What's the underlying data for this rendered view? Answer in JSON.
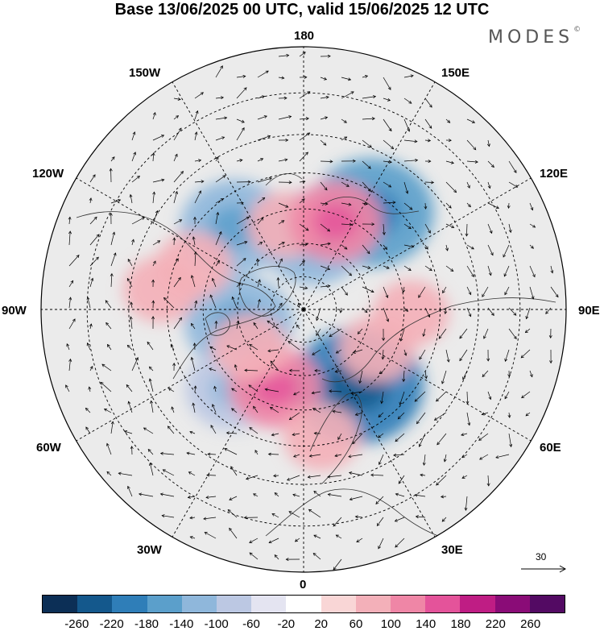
{
  "title": "Base 13/06/2025 00 UTC, valid 15/06/2025 12 UTC",
  "brand": "MODES",
  "brand_mark": "©",
  "longitude_labels": {
    "lon_180": "180",
    "lon_150e": "150E",
    "lon_120e": "120E",
    "lon_90e": "90E",
    "lon_60e": "60E",
    "lon_30e": "30E",
    "lon_0": "0",
    "lon_30w": "30W",
    "lon_60w": "60W",
    "lon_90w": "90W",
    "lon_120w": "120W",
    "lon_150w": "150W"
  },
  "reference_vector": {
    "value": "30"
  },
  "colorbar": {
    "ticks": [
      "-260",
      "-220",
      "-180",
      "-140",
      "-100",
      "-60",
      "-20",
      "20",
      "60",
      "100",
      "140",
      "180",
      "220",
      "260"
    ],
    "colors": [
      "#0c2f56",
      "#14588c",
      "#2f7eb8",
      "#5b9fcb",
      "#8fb7db",
      "#bcc8e3",
      "#e4e4f1",
      "#ffffff",
      "#f9d6d6",
      "#f3b0b9",
      "#ef86a6",
      "#e4539a",
      "#bf1d84",
      "#8a0c77",
      "#530a63"
    ]
  },
  "map": {
    "projection": "north polar stereographic",
    "colors": {
      "neutral": "#ebebeb",
      "coast": "#333333",
      "grid": "#000000"
    },
    "anomaly_centers": [
      {
        "lon": -140,
        "lat": 58,
        "value": -140
      },
      {
        "lon": 145,
        "lat": 55,
        "value": -180
      },
      {
        "lon": 35,
        "lat": 62,
        "value": -200
      },
      {
        "lon": -78,
        "lat": 70,
        "value": -140
      },
      {
        "lon": -42,
        "lat": 58,
        "value": -100
      },
      {
        "lon": 172,
        "lat": 68,
        "value": -140
      },
      {
        "lon": -168,
        "lat": 64,
        "value": 60
      },
      {
        "lon": -112,
        "lat": 55,
        "value": 60
      },
      {
        "lon": -98,
        "lat": 48,
        "value": 60
      },
      {
        "lon": 160,
        "lat": 62,
        "value": 100
      },
      {
        "lon": 88,
        "lat": 58,
        "value": 60
      },
      {
        "lon": 62,
        "lat": 65,
        "value": 60
      },
      {
        "lon": -20,
        "lat": 65,
        "value": 100
      },
      {
        "lon": 8,
        "lat": 52,
        "value": 60
      },
      {
        "lon": -55,
        "lat": 70,
        "value": 60
      }
    ]
  }
}
